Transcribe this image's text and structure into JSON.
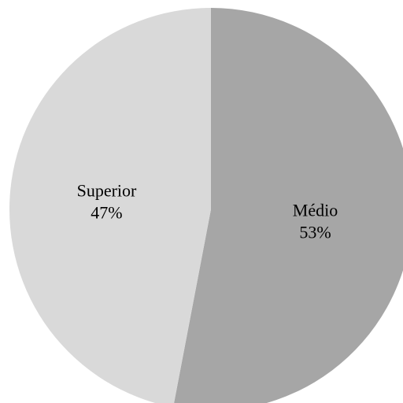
{
  "chart_data": {
    "type": "pie",
    "title": "",
    "categories": [
      "Médio",
      "Superior"
    ],
    "values": [
      53,
      47
    ],
    "value_labels": [
      "53%",
      "47%"
    ],
    "colors": [
      "#a6a6a6",
      "#d9d9d9"
    ],
    "start_angle_deg": 0,
    "direction": "clockwise",
    "legend": "none"
  }
}
